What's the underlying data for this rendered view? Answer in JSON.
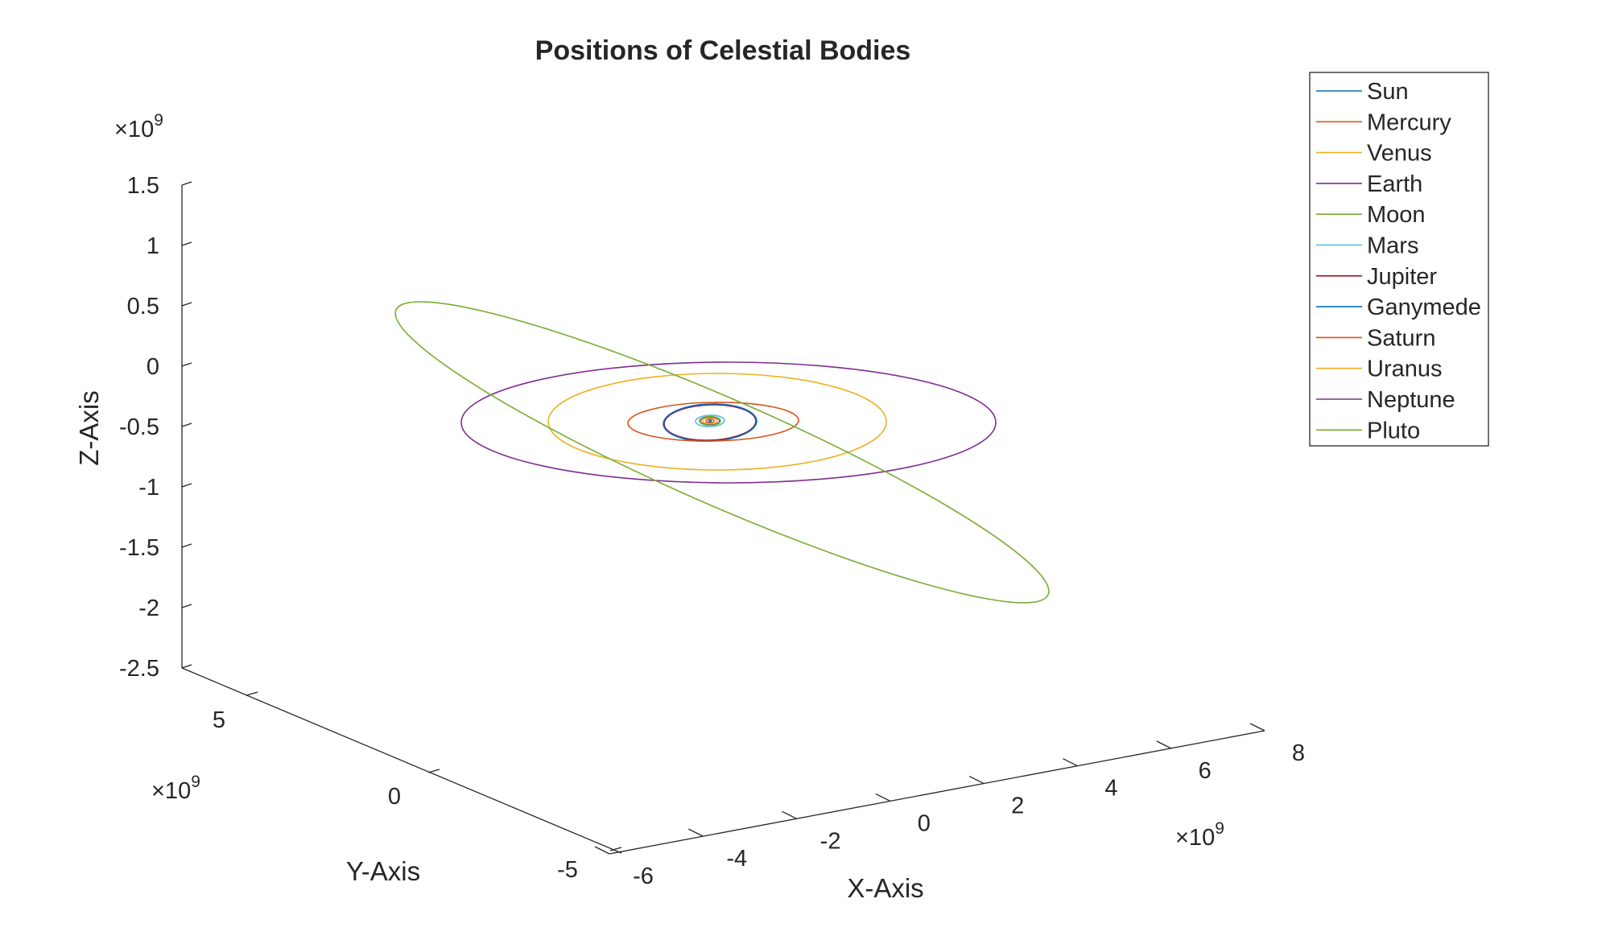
{
  "chart_data": {
    "type": "line",
    "title": "Positions of Celestial Bodies",
    "xlabel": "X-Axis",
    "ylabel": "Y-Axis",
    "zlabel": "Z-Axis",
    "x_exponent_base": "×10",
    "x_exponent": "9",
    "y_exponent_base": "×10",
    "y_exponent": "9",
    "z_exponent_base": "×10",
    "z_exponent": "9",
    "x_ticks": [
      "-6",
      "-4",
      "-2",
      "0",
      "2",
      "4",
      "6",
      "8"
    ],
    "y_ticks": [
      "-5",
      "0",
      "5"
    ],
    "z_ticks": [
      "1.5",
      "1",
      "0.5",
      "0",
      "-0.5",
      "-1",
      "-1.5",
      "-2",
      "-2.5"
    ],
    "xlim": [
      -6,
      8
    ],
    "ylim": [
      -5,
      7
    ],
    "zlim": [
      -2.5,
      1.5
    ],
    "legend_position": "top-right",
    "series": [
      {
        "name": "Sun",
        "color": "#0072BD",
        "semi_major_au": 0.0
      },
      {
        "name": "Mercury",
        "color": "#D95319",
        "semi_major_au": 0.39
      },
      {
        "name": "Venus",
        "color": "#EDB120",
        "semi_major_au": 0.72
      },
      {
        "name": "Earth",
        "color": "#7E2F8E",
        "semi_major_au": 1.0
      },
      {
        "name": "Moon",
        "color": "#77AC30",
        "semi_major_au": 1.0
      },
      {
        "name": "Mars",
        "color": "#4DBEEE",
        "semi_major_au": 1.52
      },
      {
        "name": "Jupiter",
        "color": "#A2142F",
        "semi_major_au": 5.2
      },
      {
        "name": "Ganymede",
        "color": "#0072BD",
        "semi_major_au": 5.2
      },
      {
        "name": "Saturn",
        "color": "#D95319",
        "semi_major_au": 9.58
      },
      {
        "name": "Uranus",
        "color": "#EDB120",
        "semi_major_au": 19.2
      },
      {
        "name": "Neptune",
        "color": "#7E2F8E",
        "semi_major_au": 30.1
      },
      {
        "name": "Pluto",
        "color": "#77AC30",
        "semi_major_au": 39.5
      }
    ]
  }
}
